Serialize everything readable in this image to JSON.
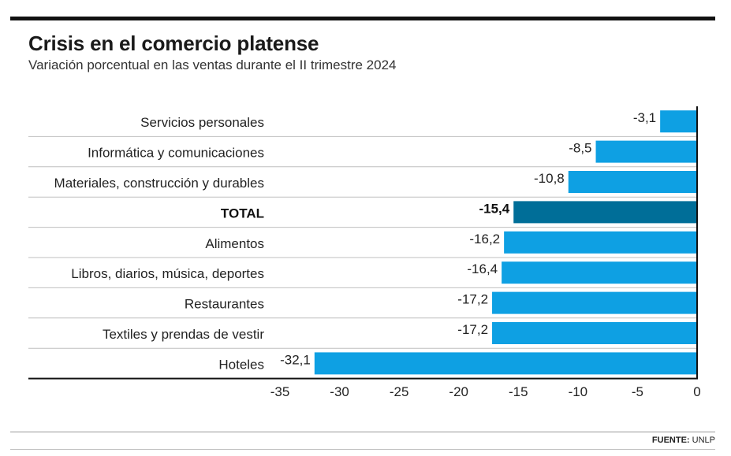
{
  "header": {
    "title": "Crisis en el comercio platense",
    "subtitle": "Variación porcentual en las ventas durante el II trimestre 2024"
  },
  "footer": {
    "source_label": "FUENTE:",
    "source_value": "UNLP"
  },
  "colors": {
    "bar": "#0ea0e3",
    "bar_total": "#006e98",
    "separator": "#bfbfbf",
    "axis": "#111111"
  },
  "chart_data": {
    "type": "bar",
    "orientation": "horizontal",
    "title": "Crisis en el comercio platense",
    "subtitle": "Variación porcentual en las ventas durante el II trimestre 2024",
    "xlabel": "",
    "ylabel": "",
    "xlim": [
      -35,
      0
    ],
    "xticks": [
      -35,
      -30,
      -25,
      -20,
      -15,
      -10,
      -5,
      0
    ],
    "categories": [
      "Servicios personales",
      "Informática y comunicaciones",
      "Materiales, construcción y durables",
      "TOTAL",
      "Alimentos",
      "Libros, diarios, música, deportes",
      "Restaurantes",
      "Textiles y prendas de vestir",
      "Hoteles"
    ],
    "values": [
      -3.1,
      -8.5,
      -10.8,
      -15.4,
      -16.2,
      -16.4,
      -17.2,
      -17.2,
      -32.1
    ],
    "value_labels": [
      "-3,1",
      "-8,5",
      "-10,8",
      "-15,4",
      "-16,2",
      "-16,4",
      "-17,2",
      "-17,2",
      "-32,1"
    ],
    "highlight": "TOTAL",
    "grid": false
  }
}
